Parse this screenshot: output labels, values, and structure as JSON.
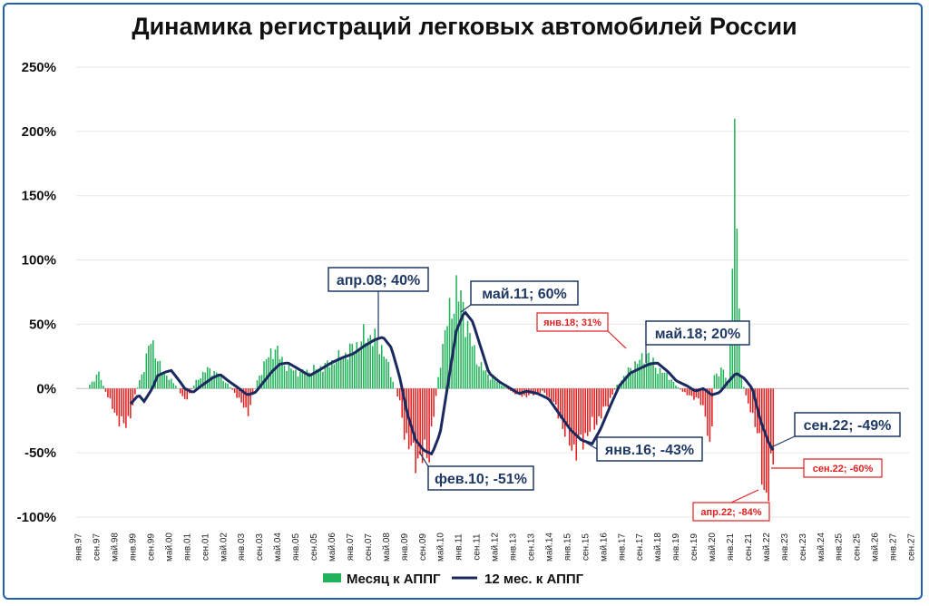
{
  "chart_data": {
    "type": "bar+line",
    "title": "Динамика регистраций легковых автомобилей России",
    "y_ticks": [
      "250%",
      "200%",
      "150%",
      "100%",
      "50%",
      "0%",
      "-50%",
      "-100%"
    ],
    "ylim": [
      -100,
      250
    ],
    "x_range": [
      "янв.97",
      "сен.27"
    ],
    "x_ticks": [
      "янв.97",
      "сен.97",
      "май.98",
      "янв.99",
      "сен.99",
      "май.00",
      "янв.01",
      "сен.01",
      "май.02",
      "янв.03",
      "сен.03",
      "май.04",
      "янв.05",
      "сен.05",
      "май.06",
      "янв.07",
      "сен.07",
      "май.08",
      "янв.09",
      "сен.09",
      "май.10",
      "янв.11",
      "сен.11",
      "май.12",
      "янв.13",
      "сен.13",
      "май.14",
      "янв.15",
      "сен.15",
      "май.16",
      "янв.17",
      "сен.17",
      "май.18",
      "янв.19",
      "сен.19",
      "май.20",
      "янв.21",
      "сен.21",
      "май.22",
      "янв.23",
      "сен.23",
      "май.24",
      "янв.25",
      "сен.25",
      "май.26",
      "янв.27",
      "сен.27"
    ],
    "series": [
      {
        "name": "Месяц к АППГ",
        "kind": "bar",
        "positive_color": "#22b25a",
        "negative_color": "#e02020",
        "monthly_start": "янв.97",
        "anchors": [
          [
            1997.5,
            3
          ],
          [
            1997.85,
            12
          ],
          [
            1998.0,
            2
          ],
          [
            1998.4,
            -18
          ],
          [
            1998.75,
            -30
          ],
          [
            1999.0,
            -20
          ],
          [
            1999.3,
            5
          ],
          [
            1999.55,
            18
          ],
          [
            1999.75,
            42
          ],
          [
            2000.0,
            20
          ],
          [
            2000.4,
            8
          ],
          [
            2000.7,
            2
          ],
          [
            2001.0,
            -10
          ],
          [
            2001.4,
            5
          ],
          [
            2001.8,
            15
          ],
          [
            2002.2,
            12
          ],
          [
            2002.6,
            3
          ],
          [
            2003.0,
            -8
          ],
          [
            2003.3,
            -20
          ],
          [
            2003.7,
            8
          ],
          [
            2004.0,
            22
          ],
          [
            2004.3,
            32
          ],
          [
            2004.7,
            18
          ],
          [
            2005.2,
            12
          ],
          [
            2005.8,
            15
          ],
          [
            2006.2,
            18
          ],
          [
            2006.8,
            25
          ],
          [
            2007.3,
            33
          ],
          [
            2007.7,
            42
          ],
          [
            2008.0,
            38
          ],
          [
            2008.3,
            30
          ],
          [
            2008.6,
            10
          ],
          [
            2008.9,
            -10
          ],
          [
            2009.1,
            -35
          ],
          [
            2009.4,
            -52
          ],
          [
            2009.7,
            -55
          ],
          [
            2010.0,
            -48
          ],
          [
            2010.2,
            -15
          ],
          [
            2010.45,
            28
          ],
          [
            2010.7,
            55
          ],
          [
            2011.0,
            75
          ],
          [
            2011.2,
            68
          ],
          [
            2011.5,
            40
          ],
          [
            2011.8,
            20
          ],
          [
            2012.2,
            10
          ],
          [
            2012.6,
            4
          ],
          [
            2013.0,
            -2
          ],
          [
            2013.4,
            -6
          ],
          [
            2013.8,
            -5
          ],
          [
            2014.2,
            -2
          ],
          [
            2014.6,
            -12
          ],
          [
            2014.9,
            -28
          ],
          [
            2015.1,
            -40
          ],
          [
            2015.4,
            -48
          ],
          [
            2015.8,
            -35
          ],
          [
            2016.1,
            -28
          ],
          [
            2016.5,
            -15
          ],
          [
            2016.9,
            2
          ],
          [
            2017.2,
            10
          ],
          [
            2017.5,
            18
          ],
          [
            2017.8,
            22
          ],
          [
            2018.0,
            28
          ],
          [
            2018.4,
            15
          ],
          [
            2018.8,
            10
          ],
          [
            2019.1,
            2
          ],
          [
            2019.5,
            -5
          ],
          [
            2019.9,
            -8
          ],
          [
            2020.2,
            -20
          ],
          [
            2020.35,
            -58
          ],
          [
            2020.5,
            10
          ],
          [
            2020.8,
            15
          ],
          [
            2021.0,
            5
          ],
          [
            2021.15,
            85
          ],
          [
            2021.3,
            210
          ],
          [
            2021.35,
            100
          ],
          [
            2021.5,
            10
          ],
          [
            2021.7,
            -10
          ],
          [
            2022.0,
            -25
          ],
          [
            2022.2,
            -50
          ],
          [
            2022.3,
            -82
          ],
          [
            2022.5,
            -75
          ],
          [
            2022.67,
            -60
          ]
        ]
      },
      {
        "name": "12 мес. к АППГ",
        "kind": "line",
        "color": "#1a2a5e",
        "anchors": [
          [
            1999.0,
            -12
          ],
          [
            1999.3,
            -5
          ],
          [
            1999.5,
            -10
          ],
          [
            1999.8,
            0
          ],
          [
            2000.0,
            10
          ],
          [
            2000.3,
            13
          ],
          [
            2000.5,
            14
          ],
          [
            2000.8,
            6
          ],
          [
            2001.0,
            0
          ],
          [
            2001.3,
            -3
          ],
          [
            2001.6,
            2
          ],
          [
            2002.0,
            8
          ],
          [
            2002.3,
            11
          ],
          [
            2002.6,
            6
          ],
          [
            2003.0,
            0
          ],
          [
            2003.3,
            -5
          ],
          [
            2003.6,
            -3
          ],
          [
            2003.9,
            5
          ],
          [
            2004.2,
            13
          ],
          [
            2004.5,
            19
          ],
          [
            2004.8,
            20
          ],
          [
            2005.2,
            15
          ],
          [
            2005.6,
            10
          ],
          [
            2006.0,
            15
          ],
          [
            2006.4,
            20
          ],
          [
            2006.8,
            24
          ],
          [
            2007.2,
            27
          ],
          [
            2007.6,
            33
          ],
          [
            2008.0,
            38
          ],
          [
            2008.3,
            40
          ],
          [
            2008.6,
            32
          ],
          [
            2008.9,
            10
          ],
          [
            2009.2,
            -20
          ],
          [
            2009.5,
            -40
          ],
          [
            2009.8,
            -48
          ],
          [
            2010.1,
            -51
          ],
          [
            2010.4,
            -35
          ],
          [
            2010.7,
            5
          ],
          [
            2011.0,
            45
          ],
          [
            2011.3,
            60
          ],
          [
            2011.6,
            52
          ],
          [
            2011.9,
            32
          ],
          [
            2012.2,
            12
          ],
          [
            2012.6,
            5
          ],
          [
            2013.0,
            0
          ],
          [
            2013.3,
            -4
          ],
          [
            2013.6,
            -2
          ],
          [
            2014.0,
            -4
          ],
          [
            2014.4,
            -8
          ],
          [
            2014.8,
            -20
          ],
          [
            2015.2,
            -32
          ],
          [
            2015.6,
            -40
          ],
          [
            2016.0,
            -43
          ],
          [
            2016.3,
            -32
          ],
          [
            2016.7,
            -12
          ],
          [
            2017.0,
            2
          ],
          [
            2017.4,
            12
          ],
          [
            2017.8,
            16
          ],
          [
            2018.1,
            19
          ],
          [
            2018.4,
            20
          ],
          [
            2018.8,
            13
          ],
          [
            2019.1,
            6
          ],
          [
            2019.5,
            2
          ],
          [
            2019.8,
            -2
          ],
          [
            2020.1,
            0
          ],
          [
            2020.4,
            -5
          ],
          [
            2020.7,
            -3
          ],
          [
            2021.0,
            5
          ],
          [
            2021.3,
            12
          ],
          [
            2021.6,
            8
          ],
          [
            2021.9,
            0
          ],
          [
            2022.2,
            -25
          ],
          [
            2022.5,
            -42
          ],
          [
            2022.7,
            -49
          ]
        ]
      }
    ],
    "callouts": {
      "apr08": "апр.08; 40%",
      "may11": "май.11; 60%",
      "feb10": "фев.10; -51%",
      "jan16": "янв.16; -43%",
      "may18": "май.18; 20%",
      "sep22_line": "сен.22; -49%",
      "jan18_bar": "янв.18; 31%",
      "sep22_bar": "сен.22; -60%",
      "apr22_bar": "апр.22; -84%"
    },
    "legend": [
      "Месяц к АППГ",
      "12 мес. к АППГ"
    ]
  }
}
